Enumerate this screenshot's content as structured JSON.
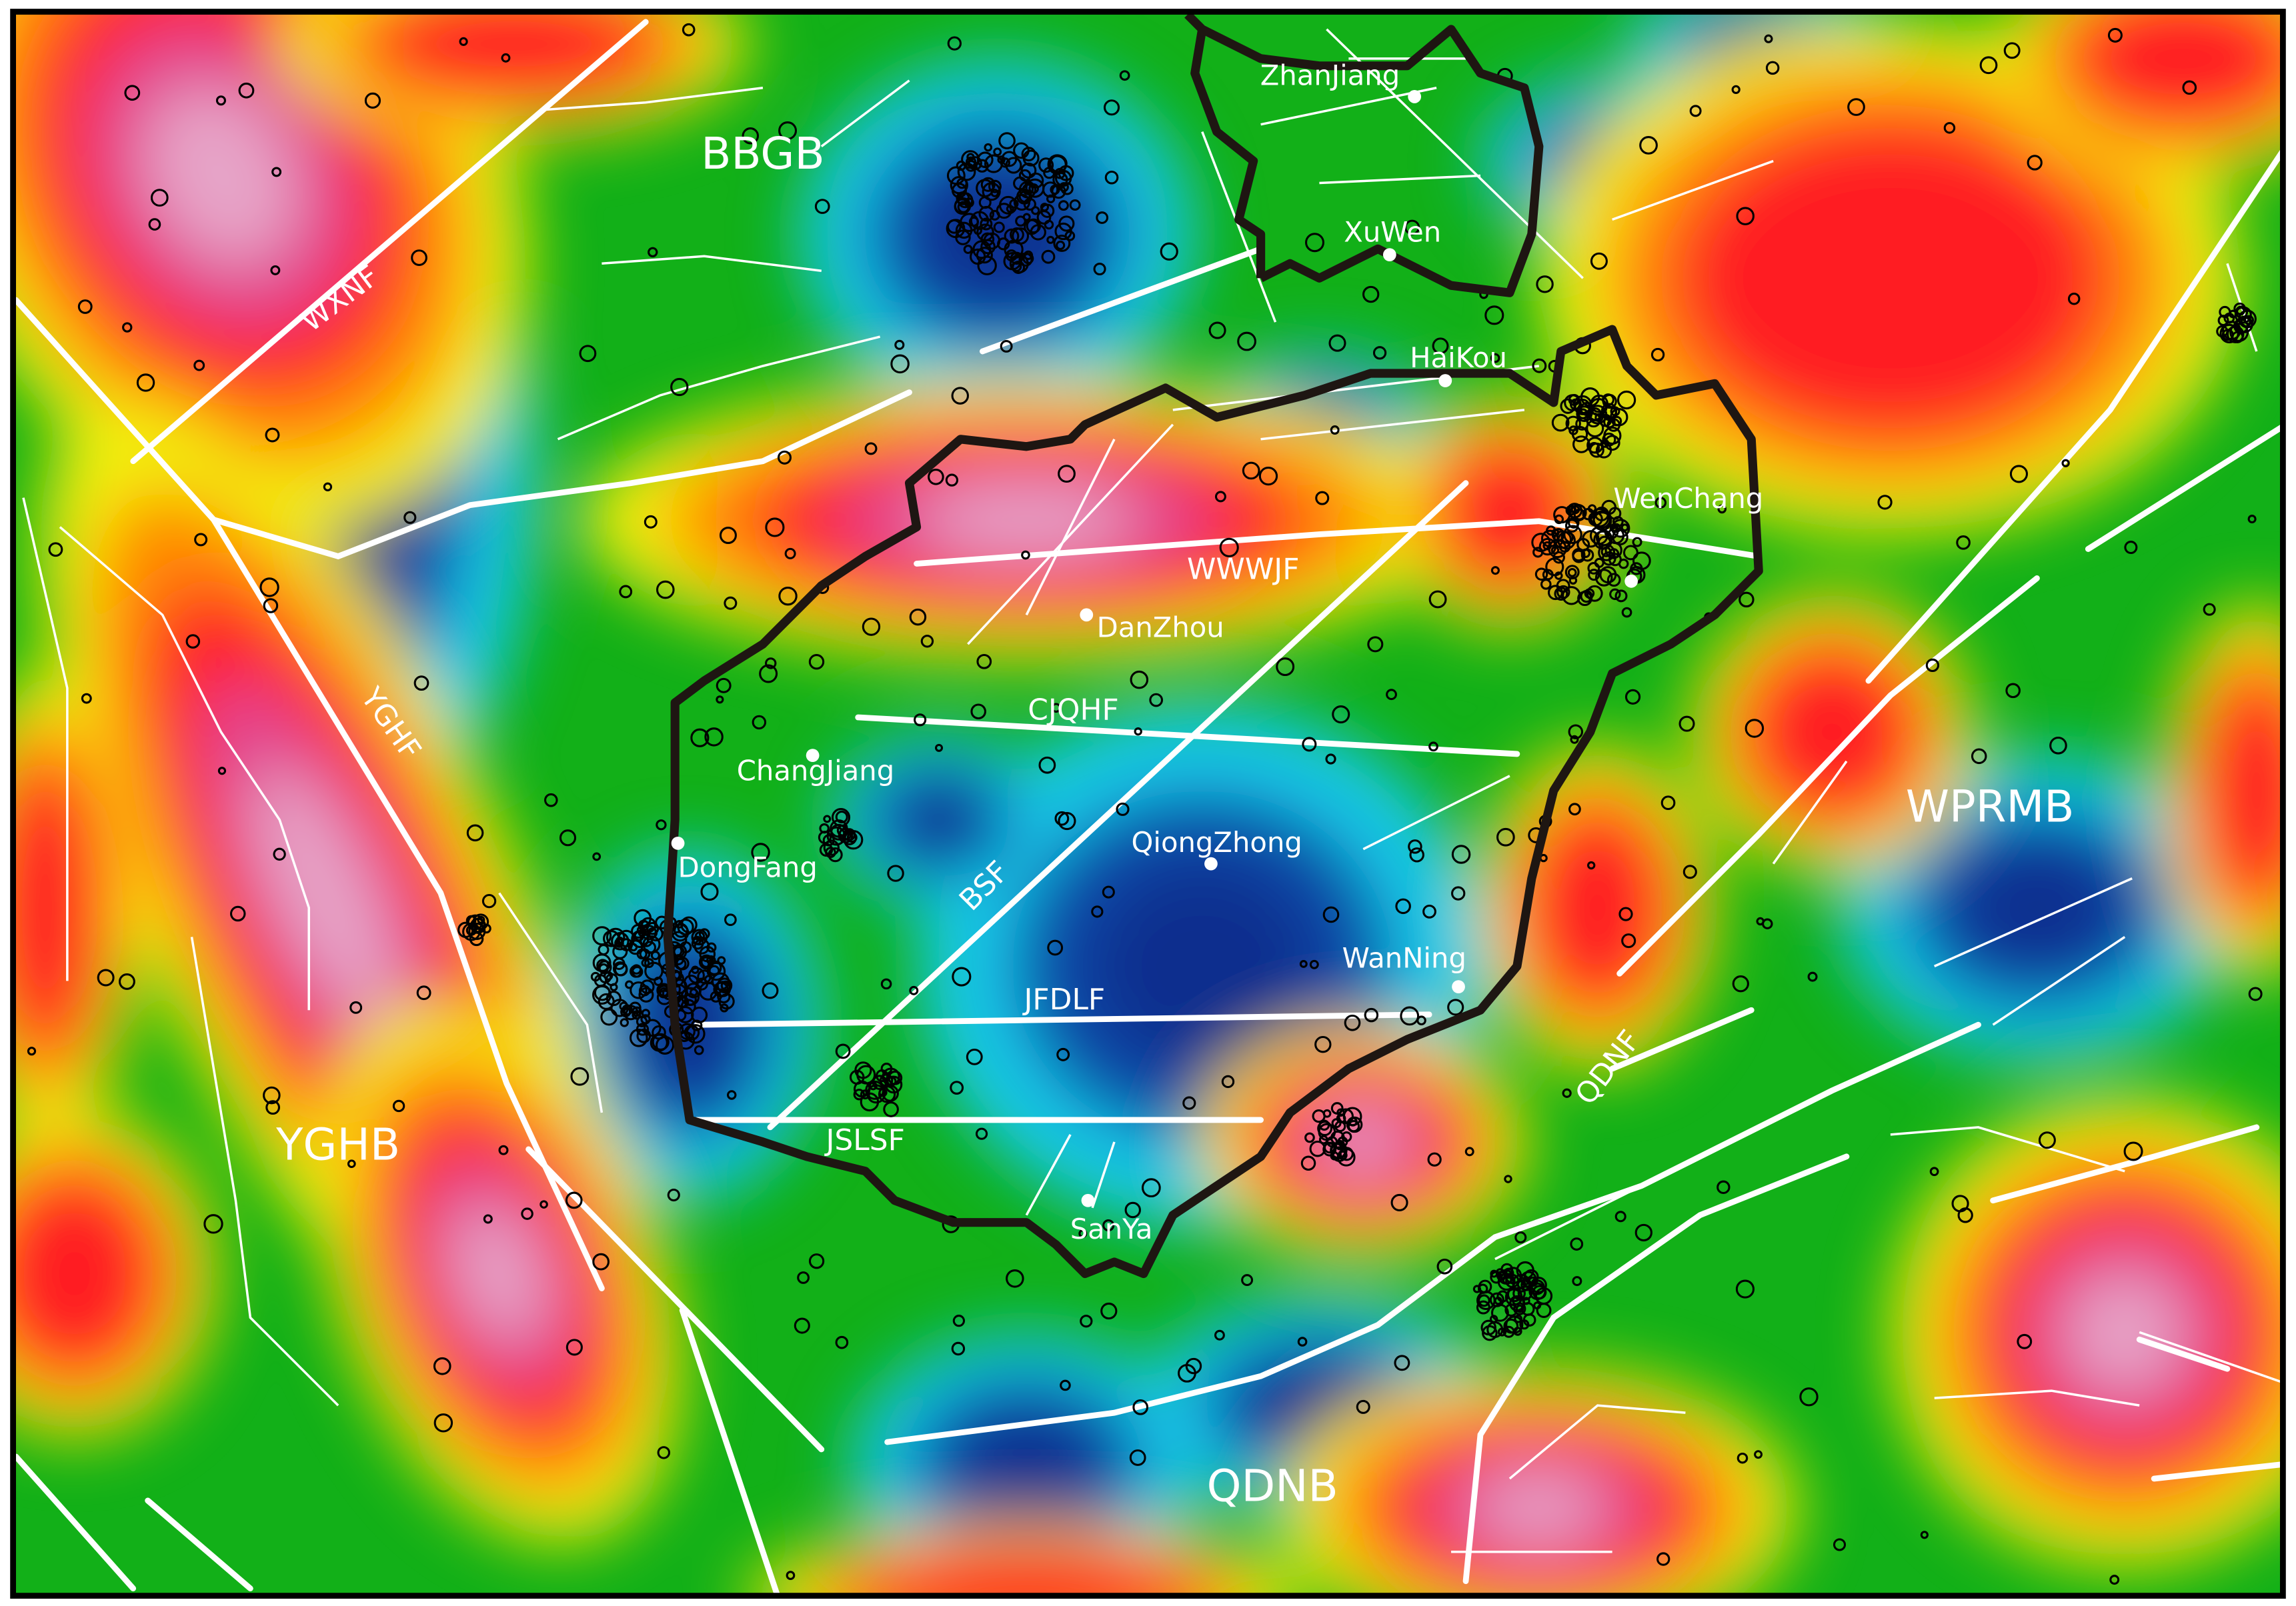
{
  "basins": [
    "BBGB",
    "YGHB",
    "WPRMB",
    "QDNB"
  ],
  "faults": [
    "WXNF",
    "YGHF",
    "WWWJF",
    "CJQHF",
    "BSF",
    "JFDLF",
    "JSLSF",
    "QDNF"
  ],
  "cities": [
    "ZhanJiang",
    "XuWen",
    "HaiKou",
    "WenChang",
    "DanZhou",
    "ChangJiang",
    "DongFang",
    "QiongZhong",
    "WanNing",
    "SanYa"
  ]
}
